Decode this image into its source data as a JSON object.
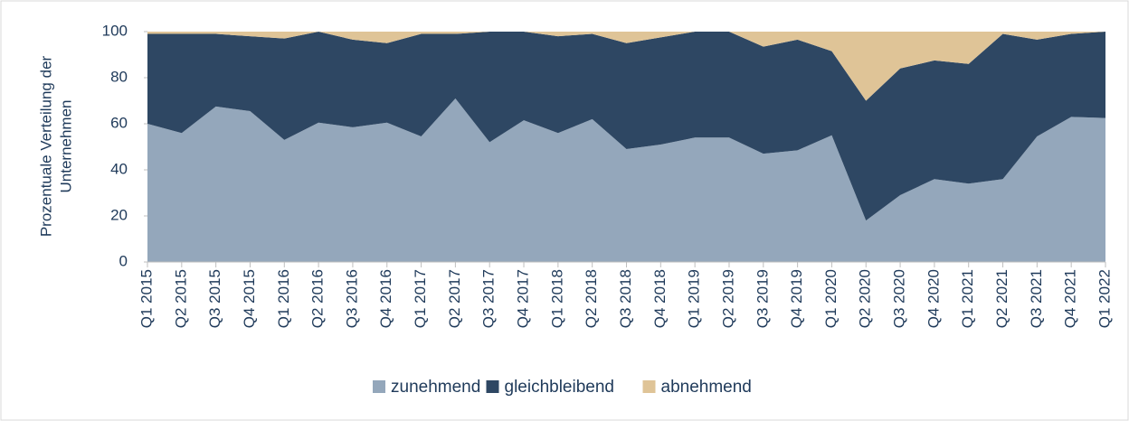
{
  "chart_data": {
    "type": "area",
    "stacked": true,
    "ylabel": [
      "Prozentuale Verteilung der",
      "Unternehmen"
    ],
    "categories": [
      "Q1 2015",
      "Q2 2015",
      "Q3 2015",
      "Q4 2015",
      "Q1 2016",
      "Q2 2016",
      "Q3 2016",
      "Q4 2016",
      "Q1 2017",
      "Q2 2017",
      "Q3 2017",
      "Q4 2017",
      "Q1 2018",
      "Q2 2018",
      "Q3 2018",
      "Q4 2018",
      "Q1 2019",
      "Q2 2019",
      "Q3 2019",
      "Q4 2019",
      "Q1 2020",
      "Q2 2020",
      "Q3 2020",
      "Q4 2020",
      "Q1 2021",
      "Q2 2021",
      "Q3 2021",
      "Q4 2021",
      "Q1 2022"
    ],
    "series": [
      {
        "name": "zunehmend",
        "color": "#94a7bb",
        "values": [
          60,
          56,
          67.5,
          65.5,
          53,
          60.5,
          58.5,
          60.5,
          54.5,
          71,
          52,
          61.5,
          56,
          62,
          49,
          51,
          54,
          54,
          47,
          48.5,
          55,
          18,
          29,
          36,
          34,
          36,
          54.5,
          63,
          62.5
        ]
      },
      {
        "name": "gleichbleibend",
        "color": "#2e4763",
        "values": [
          39,
          43,
          31.5,
          32.5,
          44,
          39.5,
          38,
          34.5,
          44.5,
          28,
          48,
          38.5,
          42,
          37,
          46,
          46.5,
          46,
          46,
          46.5,
          48,
          36.5,
          52,
          55,
          51.5,
          52,
          63,
          42,
          36,
          37.5
        ]
      },
      {
        "name": "abnehmend",
        "color": "#dfc497",
        "values": [
          1,
          1,
          1,
          2,
          3,
          0,
          3.5,
          5,
          1,
          1,
          0,
          0,
          2,
          1,
          5,
          2.5,
          0,
          0,
          6.5,
          3.5,
          8.5,
          30,
          16,
          12.5,
          14,
          1,
          3.5,
          1,
          0
        ]
      }
    ],
    "ylim": [
      0,
      100
    ],
    "yticks": [
      0,
      20,
      40,
      60,
      80,
      100
    ],
    "legend": "bottom"
  }
}
